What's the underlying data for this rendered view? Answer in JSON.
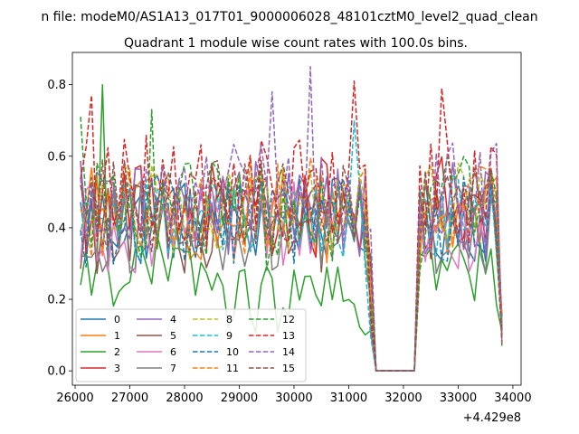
{
  "chart_data": {
    "type": "line",
    "suptitle": "n file: modeM0/AS1A13_017T01_9000006028_48101cztM0_level2_quad_clean",
    "title": "Quadrant 1 module wise count rates with 100.0s bins.",
    "xlabel": "",
    "ylabel": "",
    "x_offset_label": "+4.429e8",
    "xlim": [
      25950,
      34150
    ],
    "ylim": [
      -0.04,
      0.89
    ],
    "x_ticks": [
      26000,
      27000,
      28000,
      29000,
      30000,
      31000,
      32000,
      33000,
      34000
    ],
    "y_ticks": [
      0.0,
      0.2,
      0.4,
      0.6,
      0.8
    ],
    "grid": false,
    "legend_position": "lower-left",
    "x": {
      "start": 26100,
      "step": 100,
      "gap_from": 31500,
      "gap_to": 32200,
      "end": 33800
    },
    "series": [
      {
        "name": "0",
        "color": "#1f77b4",
        "dash": false
      },
      {
        "name": "1",
        "color": "#ff7f0e",
        "dash": false
      },
      {
        "name": "2",
        "color": "#2ca02c",
        "dash": false
      },
      {
        "name": "3",
        "color": "#d62728",
        "dash": false
      },
      {
        "name": "4",
        "color": "#9467bd",
        "dash": false
      },
      {
        "name": "5",
        "color": "#8c564b",
        "dash": false
      },
      {
        "name": "6",
        "color": "#e377c2",
        "dash": false
      },
      {
        "name": "7",
        "color": "#7f7f7f",
        "dash": false
      },
      {
        "name": "8",
        "color": "#bcbd22",
        "dash": true
      },
      {
        "name": "9",
        "color": "#17becf",
        "dash": true
      },
      {
        "name": "10",
        "color": "#1f77b4",
        "dash": true
      },
      {
        "name": "11",
        "color": "#ff7f0e",
        "dash": true
      },
      {
        "name": "12",
        "color": "#2ca02c",
        "dash": true
      },
      {
        "name": "13",
        "color": "#d62728",
        "dash": true
      },
      {
        "name": "14",
        "color": "#9467bd",
        "dash": true
      },
      {
        "name": "15",
        "color": "#8c564b",
        "dash": true
      }
    ]
  }
}
